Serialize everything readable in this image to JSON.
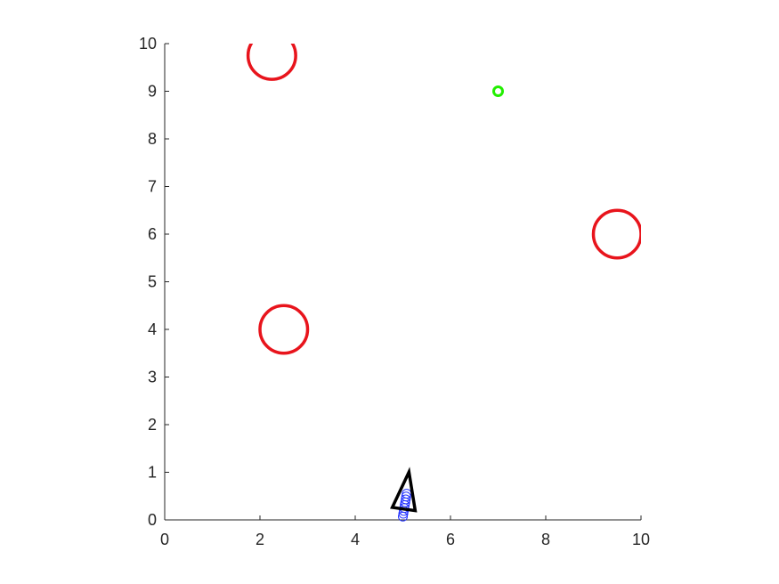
{
  "chart_data": {
    "type": "scatter",
    "title": "",
    "xlabel": "",
    "ylabel": "",
    "xlim": [
      0,
      10
    ],
    "ylim": [
      0,
      10
    ],
    "grid": false,
    "axis_equal": true,
    "x_ticks": [
      "0",
      "2",
      "4",
      "6",
      "8",
      "10"
    ],
    "y_ticks": [
      "0",
      "1",
      "2",
      "3",
      "4",
      "5",
      "6",
      "7",
      "8",
      "9",
      "10"
    ],
    "obstacles": [
      {
        "x": 2.25,
        "y": 9.75,
        "r": 0.5
      },
      {
        "x": 9.5,
        "y": 6.0,
        "r": 0.5
      },
      {
        "x": 2.5,
        "y": 4.0,
        "r": 0.5
      }
    ],
    "goal": {
      "x": 7.0,
      "y": 9.0
    },
    "path_points": [
      {
        "x": 5.0,
        "y": 0.07
      },
      {
        "x": 5.01,
        "y": 0.13
      },
      {
        "x": 5.02,
        "y": 0.19
      },
      {
        "x": 5.03,
        "y": 0.25
      },
      {
        "x": 5.04,
        "y": 0.31
      },
      {
        "x": 5.05,
        "y": 0.37
      },
      {
        "x": 5.06,
        "y": 0.43
      },
      {
        "x": 5.07,
        "y": 0.49
      },
      {
        "x": 5.08,
        "y": 0.55
      }
    ],
    "robot": {
      "x": 5.05,
      "y": 0.45,
      "heading_deg": 82
    },
    "colors": {
      "obstacle": "#e8141c",
      "goal": "#22ee00",
      "path": "#2433ff",
      "robot": "#000000",
      "axis": "#262626"
    }
  }
}
